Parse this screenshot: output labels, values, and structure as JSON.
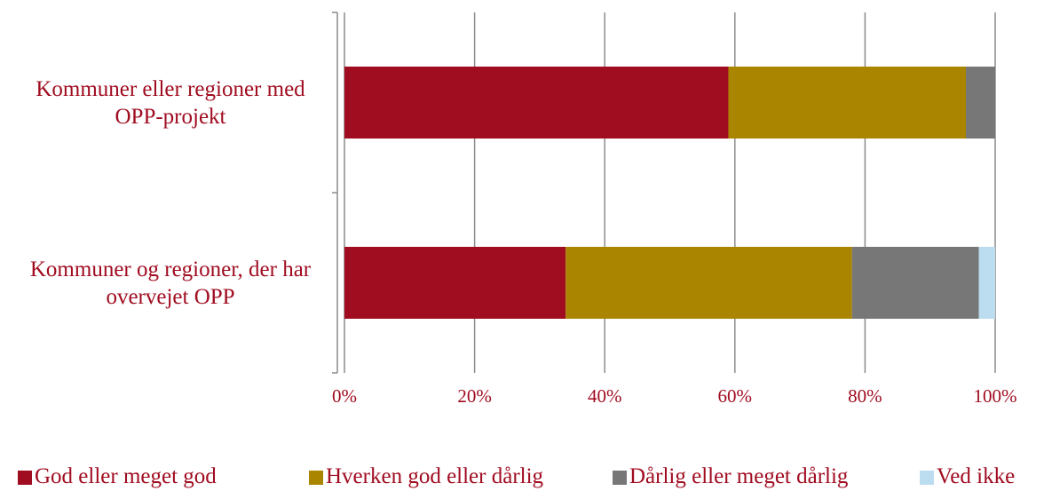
{
  "chart_data": {
    "type": "bar",
    "orientation": "horizontal",
    "stacked": true,
    "categories": [
      "Kommuner eller regioner med OPP-projekt",
      "Kommuner og regioner, der har overvejet OPP"
    ],
    "series": [
      {
        "name": "God eller meget god",
        "color": "#a00c20",
        "values": [
          59,
          34
        ]
      },
      {
        "name": "Hverken god eller dårlig",
        "color": "#a98500",
        "values": [
          36.5,
          44
        ]
      },
      {
        "name": "Dårlig eller meget dårlig",
        "color": "#777777",
        "values": [
          4.5,
          19.5
        ]
      },
      {
        "name": "Ved ikke",
        "color": "#bcdcf0",
        "values": [
          0,
          2.5
        ]
      }
    ],
    "xlim": [
      0,
      100
    ],
    "xticks": [
      {
        "value": 0,
        "label": "0%"
      },
      {
        "value": 20,
        "label": "20%"
      },
      {
        "value": 40,
        "label": "40%"
      },
      {
        "value": 60,
        "label": "60%"
      },
      {
        "value": 80,
        "label": "80%"
      },
      {
        "value": 100,
        "label": "100%"
      }
    ],
    "grid": true,
    "legend": "bottom"
  }
}
